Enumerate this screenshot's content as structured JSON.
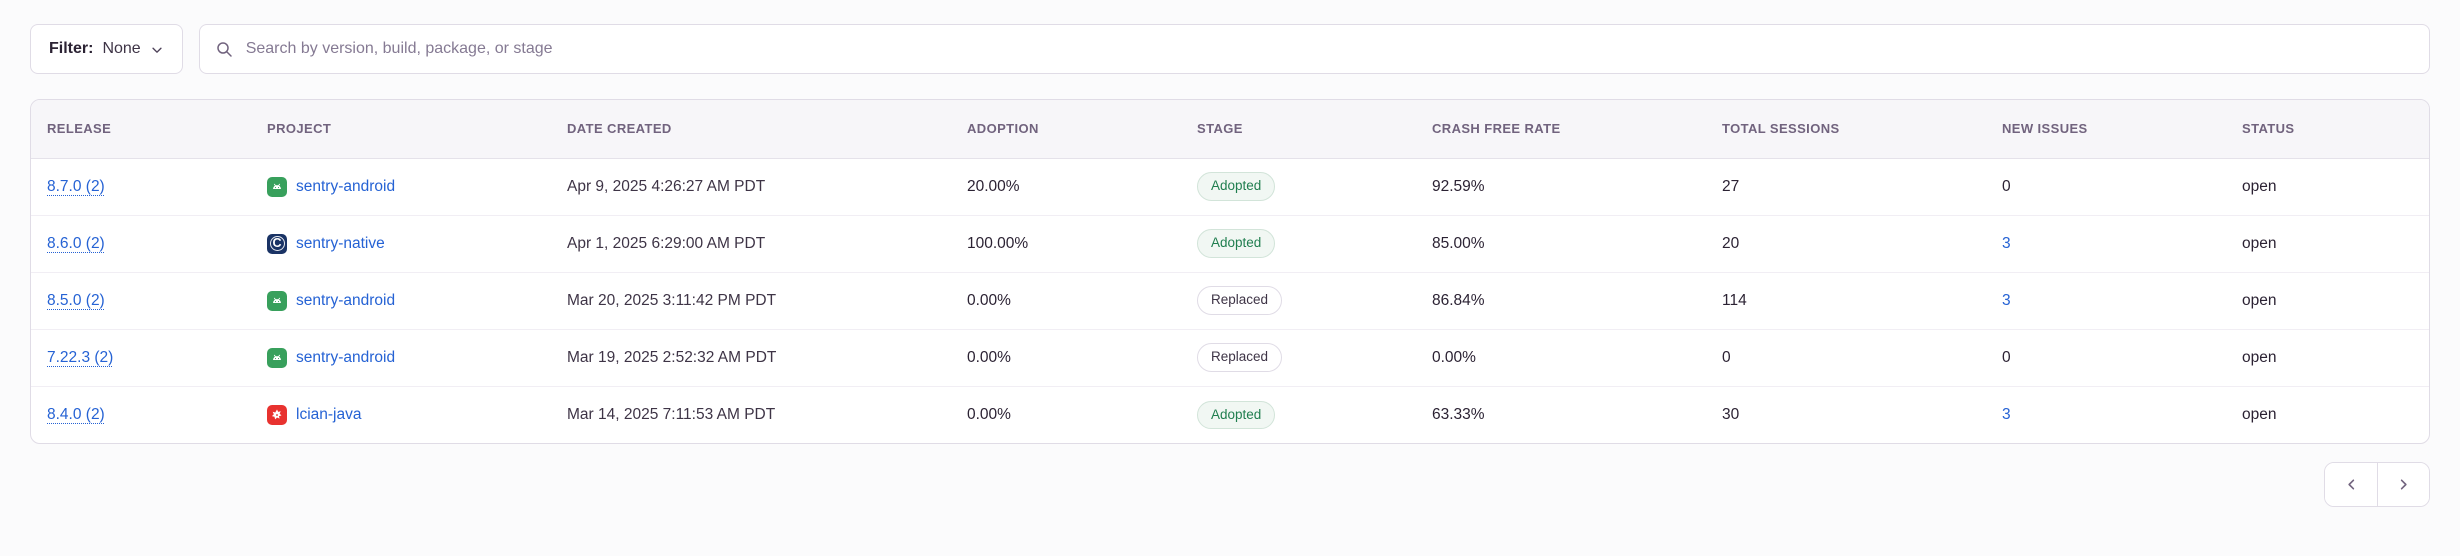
{
  "filter": {
    "label": "Filter:",
    "value": "None",
    "chevron_icon": "chevron-down-icon"
  },
  "search": {
    "icon": "search-icon",
    "placeholder": "Search by version, build, package, or stage"
  },
  "table": {
    "columns": [
      "RELEASE",
      "PROJECT",
      "DATE CREATED",
      "ADOPTION",
      "STAGE",
      "CRASH FREE RATE",
      "TOTAL SESSIONS",
      "NEW ISSUES",
      "STATUS"
    ],
    "rows": [
      {
        "release": "8.7.0 (2)",
        "project": "sentry-android",
        "project_icon": "android-icon",
        "date_created": "Apr 9, 2025 4:26:27 AM PDT",
        "adoption": "20.00%",
        "stage": "Adopted",
        "crash_free_rate": "92.59%",
        "total_sessions": "27",
        "new_issues": "0",
        "new_issues_is_link": false,
        "status": "open"
      },
      {
        "release": "8.6.0 (2)",
        "project": "sentry-native",
        "project_icon": "c-icon",
        "date_created": "Apr 1, 2025 6:29:00 AM PDT",
        "adoption": "100.00%",
        "stage": "Adopted",
        "crash_free_rate": "85.00%",
        "total_sessions": "20",
        "new_issues": "3",
        "new_issues_is_link": true,
        "status": "open"
      },
      {
        "release": "8.5.0 (2)",
        "project": "sentry-android",
        "project_icon": "android-icon",
        "date_created": "Mar 20, 2025 3:11:42 PM PDT",
        "adoption": "0.00%",
        "stage": "Replaced",
        "crash_free_rate": "86.84%",
        "total_sessions": "114",
        "new_issues": "3",
        "new_issues_is_link": true,
        "status": "open"
      },
      {
        "release": "7.22.3 (2)",
        "project": "sentry-android",
        "project_icon": "android-icon",
        "date_created": "Mar 19, 2025 2:52:32 AM PDT",
        "adoption": "0.00%",
        "stage": "Replaced",
        "crash_free_rate": "0.00%",
        "total_sessions": "0",
        "new_issues": "0",
        "new_issues_is_link": false,
        "status": "open"
      },
      {
        "release": "8.4.0 (2)",
        "project": "lcian-java",
        "project_icon": "java-icon",
        "date_created": "Mar 14, 2025 7:11:53 AM PDT",
        "adoption": "0.00%",
        "stage": "Adopted",
        "crash_free_rate": "63.33%",
        "total_sessions": "30",
        "new_issues": "3",
        "new_issues_is_link": true,
        "status": "open"
      }
    ]
  },
  "pagination": {
    "prev_icon": "chevron-left-icon",
    "next_icon": "chevron-right-icon"
  },
  "icons": {
    "c_glyph": "C"
  },
  "colors": {
    "link_blue": "#2562d4",
    "adopted_green": "#207e4f",
    "android_green": "#38a05c",
    "c_navy": "#1a3365",
    "java_red": "#e8322f",
    "header_text": "#71637e",
    "page_background": "#fbfbfc"
  }
}
